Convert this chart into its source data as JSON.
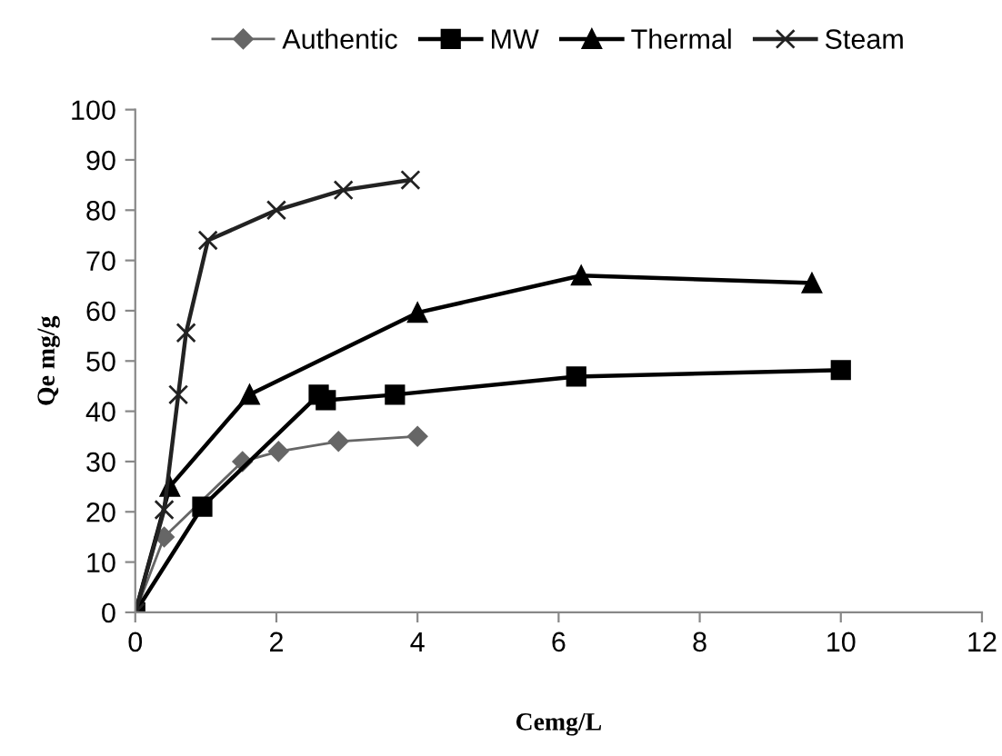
{
  "chart_data": {
    "type": "line",
    "xlabel": "Cemg/L",
    "ylabel": "Qe mg/g",
    "xlim": [
      0,
      12
    ],
    "xticks": [
      0,
      2,
      4,
      6,
      8,
      10,
      12
    ],
    "ylim": [
      0,
      100
    ],
    "yticks": [
      0,
      10,
      20,
      30,
      40,
      50,
      60,
      70,
      80,
      90,
      100
    ],
    "grid": false,
    "legend": "top",
    "series": [
      {
        "name": "Authentic",
        "color": "#666666",
        "marker": "diamond",
        "x": [
          0,
          0.41,
          1.52,
          2.03,
          2.88,
          4.0
        ],
        "values": [
          0,
          15,
          30,
          32,
          34,
          35
        ]
      },
      {
        "name": "MW",
        "color": "#000000",
        "marker": "square",
        "x": [
          0,
          0.95,
          2.6,
          2.7,
          3.68,
          6.25,
          10.0
        ],
        "values": [
          0,
          21,
          43.3,
          42.2,
          43.3,
          46.9,
          48.2
        ]
      },
      {
        "name": "Thermal",
        "color": "#000000",
        "marker": "triangle",
        "x": [
          0,
          0.49,
          1.62,
          4.0,
          6.32,
          9.59
        ],
        "values": [
          0,
          25,
          43.3,
          59.6,
          67,
          65.5
        ]
      },
      {
        "name": "Steam",
        "color": "#222222",
        "marker": "cross",
        "x": [
          0,
          0.41,
          0.61,
          0.72,
          1.03,
          2.0,
          2.95,
          3.9
        ],
        "values": [
          0,
          20.4,
          43.3,
          55.6,
          74,
          80,
          84,
          86
        ]
      }
    ]
  }
}
